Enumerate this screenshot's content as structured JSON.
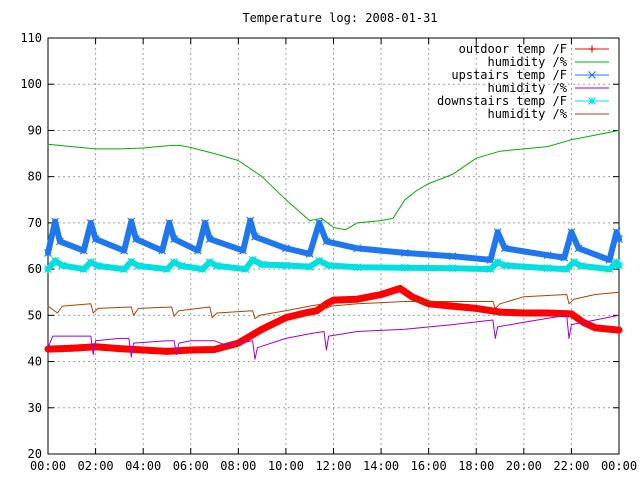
{
  "chart_data": {
    "type": "line",
    "title": "Temperature log: 2008-01-31",
    "xlabel": "",
    "ylabel": "",
    "x_ticks": [
      "00:00",
      "02:00",
      "04:00",
      "06:00",
      "08:00",
      "10:00",
      "12:00",
      "14:00",
      "16:00",
      "18:00",
      "20:00",
      "22:00",
      "00:00"
    ],
    "xlim": [
      0,
      24
    ],
    "ylim": [
      20,
      110
    ],
    "y_ticks": [
      20,
      30,
      40,
      50,
      60,
      70,
      80,
      90,
      100,
      110
    ],
    "grid": true,
    "legend_position": "top-right",
    "series": [
      {
        "name": "outdoor temp /F",
        "color": "#ff0000",
        "marker": "plus",
        "points": [
          [
            0,
            42.7
          ],
          [
            1,
            42.9
          ],
          [
            2,
            43.2
          ],
          [
            3,
            42.8
          ],
          [
            4,
            42.5
          ],
          [
            5,
            42.2
          ],
          [
            6,
            42.5
          ],
          [
            7,
            42.6
          ],
          [
            8,
            44.0
          ],
          [
            9,
            47.0
          ],
          [
            10,
            49.5
          ],
          [
            10.8,
            50.5
          ],
          [
            11.3,
            51.0
          ],
          [
            11.7,
            52.5
          ],
          [
            12,
            53.3
          ],
          [
            13,
            53.5
          ],
          [
            14,
            54.5
          ],
          [
            14.8,
            55.8
          ],
          [
            15.3,
            54.0
          ],
          [
            16,
            52.5
          ],
          [
            17,
            52.0
          ],
          [
            18,
            51.5
          ],
          [
            19,
            50.7
          ],
          [
            20,
            50.5
          ],
          [
            21,
            50.5
          ],
          [
            22,
            50.3
          ],
          [
            22.5,
            48.5
          ],
          [
            23,
            47.3
          ],
          [
            24,
            46.8
          ]
        ]
      },
      {
        "name": "humidity /%",
        "color": "#00b000",
        "marker": "none",
        "points": [
          [
            0,
            87.0
          ],
          [
            1,
            86.5
          ],
          [
            2,
            86.0
          ],
          [
            3,
            86.0
          ],
          [
            4,
            86.2
          ],
          [
            5,
            86.7
          ],
          [
            5.5,
            86.8
          ],
          [
            6,
            86.3
          ],
          [
            7,
            85.0
          ],
          [
            8,
            83.5
          ],
          [
            9,
            80.0
          ],
          [
            10,
            75.0
          ],
          [
            11,
            70.5
          ],
          [
            11.5,
            71.0
          ],
          [
            12,
            69.0
          ],
          [
            12.5,
            68.5
          ],
          [
            13,
            70.0
          ],
          [
            14,
            70.5
          ],
          [
            14.5,
            71.0
          ],
          [
            15,
            75.0
          ],
          [
            15.5,
            77.0
          ],
          [
            16,
            78.5
          ],
          [
            17,
            80.5
          ],
          [
            18,
            84.0
          ],
          [
            19,
            85.5
          ],
          [
            20,
            86.0
          ],
          [
            21,
            86.5
          ],
          [
            22,
            88.0
          ],
          [
            23,
            89.0
          ],
          [
            24,
            90.0
          ]
        ]
      },
      {
        "name": "upstairs temp /F",
        "color": "#1f77f0",
        "marker": "x",
        "points": [
          [
            0,
            63.5
          ],
          [
            0.3,
            70.3
          ],
          [
            0.5,
            66.0
          ],
          [
            1.5,
            64.0
          ],
          [
            1.8,
            70.0
          ],
          [
            2,
            66.5
          ],
          [
            3.2,
            64.0
          ],
          [
            3.5,
            70.3
          ],
          [
            3.7,
            66.5
          ],
          [
            4.8,
            64.0
          ],
          [
            5.1,
            70.0
          ],
          [
            5.3,
            66.5
          ],
          [
            6.3,
            64.0
          ],
          [
            6.6,
            70.0
          ],
          [
            6.8,
            66.5
          ],
          [
            8.2,
            64.0
          ],
          [
            8.5,
            70.5
          ],
          [
            8.7,
            67.0
          ],
          [
            10,
            64.5
          ],
          [
            11,
            63.3
          ],
          [
            11.4,
            70.0
          ],
          [
            11.7,
            66.0
          ],
          [
            13,
            64.5
          ],
          [
            15,
            63.5
          ],
          [
            17,
            62.8
          ],
          [
            18.6,
            62.0
          ],
          [
            18.9,
            68.0
          ],
          [
            19.2,
            64.5
          ],
          [
            21,
            63.0
          ],
          [
            21.7,
            62.5
          ],
          [
            22,
            68.0
          ],
          [
            22.3,
            64.5
          ],
          [
            23.6,
            62.0
          ],
          [
            23.9,
            68.0
          ],
          [
            24,
            66.5
          ]
        ]
      },
      {
        "name": "humidity /%",
        "color": "#a000d0",
        "marker": "none",
        "points": [
          [
            0,
            43.0
          ],
          [
            0.2,
            45.5
          ],
          [
            1,
            45.5
          ],
          [
            1.8,
            45.5
          ],
          [
            1.9,
            41.5
          ],
          [
            2,
            44.5
          ],
          [
            3,
            45.0
          ],
          [
            3.4,
            45.0
          ],
          [
            3.5,
            41.0
          ],
          [
            3.6,
            44.0
          ],
          [
            5,
            44.5
          ],
          [
            5.3,
            44.5
          ],
          [
            5.4,
            41.5
          ],
          [
            5.5,
            44.0
          ],
          [
            6,
            44.5
          ],
          [
            7,
            44.5
          ],
          [
            7.5,
            43.5
          ],
          [
            8,
            44.0
          ],
          [
            8.6,
            44.5
          ],
          [
            8.7,
            40.5
          ],
          [
            8.8,
            43.0
          ],
          [
            10,
            45.0
          ],
          [
            11,
            46.0
          ],
          [
            11.6,
            46.5
          ],
          [
            11.7,
            42.5
          ],
          [
            11.8,
            45.5
          ],
          [
            13,
            46.5
          ],
          [
            15,
            47.0
          ],
          [
            17,
            48.0
          ],
          [
            18.7,
            49.0
          ],
          [
            18.8,
            45.0
          ],
          [
            18.9,
            47.5
          ],
          [
            20,
            48.5
          ],
          [
            21.8,
            50.0
          ],
          [
            21.9,
            45.0
          ],
          [
            22,
            48.0
          ],
          [
            23,
            49.0
          ],
          [
            24,
            50.0
          ]
        ]
      },
      {
        "name": "downstairs temp /F",
        "color": "#00e0e0",
        "marker": "asterisk",
        "points": [
          [
            0,
            60.0
          ],
          [
            0.3,
            61.8
          ],
          [
            0.6,
            60.8
          ],
          [
            1.5,
            60.0
          ],
          [
            1.8,
            61.5
          ],
          [
            2.1,
            60.7
          ],
          [
            3.2,
            60.0
          ],
          [
            3.5,
            61.6
          ],
          [
            3.8,
            60.7
          ],
          [
            5,
            60.0
          ],
          [
            5.3,
            61.5
          ],
          [
            5.6,
            60.7
          ],
          [
            6.5,
            60.0
          ],
          [
            6.8,
            61.5
          ],
          [
            7.1,
            60.7
          ],
          [
            8.3,
            60.0
          ],
          [
            8.6,
            62.0
          ],
          [
            9,
            61.0
          ],
          [
            10,
            60.8
          ],
          [
            11,
            60.5
          ],
          [
            11.4,
            61.8
          ],
          [
            11.8,
            60.8
          ],
          [
            13,
            60.4
          ],
          [
            15,
            60.3
          ],
          [
            17,
            60.2
          ],
          [
            18.6,
            60.0
          ],
          [
            18.9,
            61.5
          ],
          [
            19.2,
            60.8
          ],
          [
            21,
            60.2
          ],
          [
            21.8,
            60.0
          ],
          [
            22.1,
            61.5
          ],
          [
            22.4,
            60.7
          ],
          [
            23.6,
            60.0
          ],
          [
            23.9,
            61.5
          ],
          [
            24,
            60.8
          ]
        ]
      },
      {
        "name": "humidity /%",
        "color": "#b04000",
        "marker": "none",
        "points": [
          [
            0,
            52.0
          ],
          [
            0.4,
            50.5
          ],
          [
            0.6,
            52.0
          ],
          [
            1.8,
            52.5
          ],
          [
            1.9,
            50.5
          ],
          [
            2.1,
            51.5
          ],
          [
            3.5,
            51.8
          ],
          [
            3.6,
            50.0
          ],
          [
            3.8,
            51.5
          ],
          [
            5.2,
            51.8
          ],
          [
            5.3,
            49.8
          ],
          [
            5.5,
            51.0
          ],
          [
            6.8,
            51.8
          ],
          [
            6.9,
            49.5
          ],
          [
            7.1,
            50.5
          ],
          [
            8.6,
            51.0
          ],
          [
            8.7,
            49.3
          ],
          [
            8.9,
            50.0
          ],
          [
            10,
            51.0
          ],
          [
            11,
            52.0
          ],
          [
            11.6,
            52.5
          ],
          [
            11.7,
            51.5
          ],
          [
            11.9,
            52.0
          ],
          [
            13,
            52.5
          ],
          [
            15,
            53.0
          ],
          [
            17,
            53.0
          ],
          [
            18.7,
            53.0
          ],
          [
            18.8,
            51.5
          ],
          [
            19,
            52.5
          ],
          [
            20,
            54.0
          ],
          [
            21.8,
            54.5
          ],
          [
            21.9,
            52.5
          ],
          [
            22.1,
            53.5
          ],
          [
            23,
            54.5
          ],
          [
            24,
            55.0
          ]
        ]
      }
    ]
  }
}
